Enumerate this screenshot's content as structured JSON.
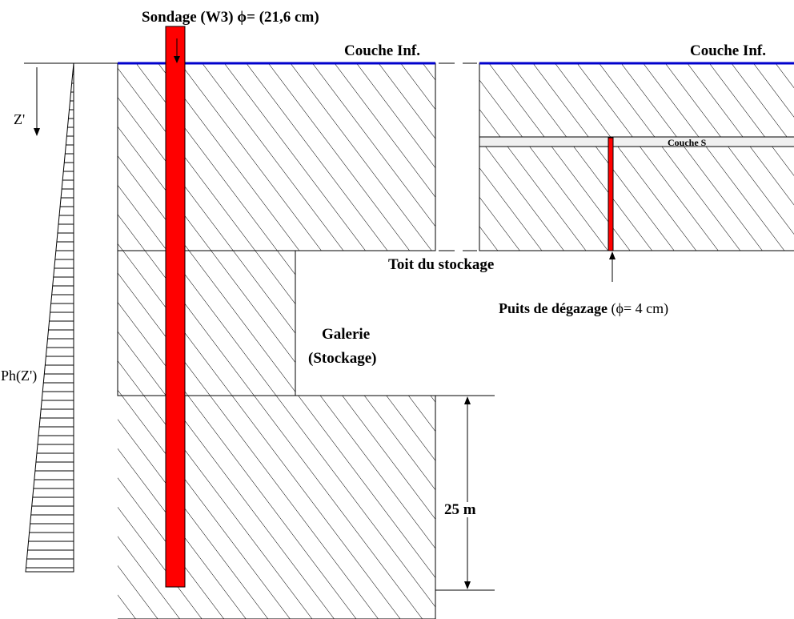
{
  "labels": {
    "sondage_prefix": "Sondage (W3) ",
    "phi": "ϕ",
    "sondage_suffix": "= (21,6 cm)",
    "couche_inf_left": "Couche Inf.",
    "couche_inf_right": "Couche Inf.",
    "couche_s": "Couche S",
    "toit": "Toit du stockage",
    "puits_bold": "Puits de dégazage",
    "puits_normal": "(ϕ= 4 cm)",
    "galerie": "Galerie",
    "stockage": "(Stockage)",
    "dimension": "25 m",
    "z_prime": "Z'",
    "ph": "Ph(Z')"
  },
  "colors": {
    "borehole": "#ff0000",
    "surface_line": "#0000cc",
    "hatch": "#000000",
    "couche_s_fill": "#f0f0f0"
  }
}
